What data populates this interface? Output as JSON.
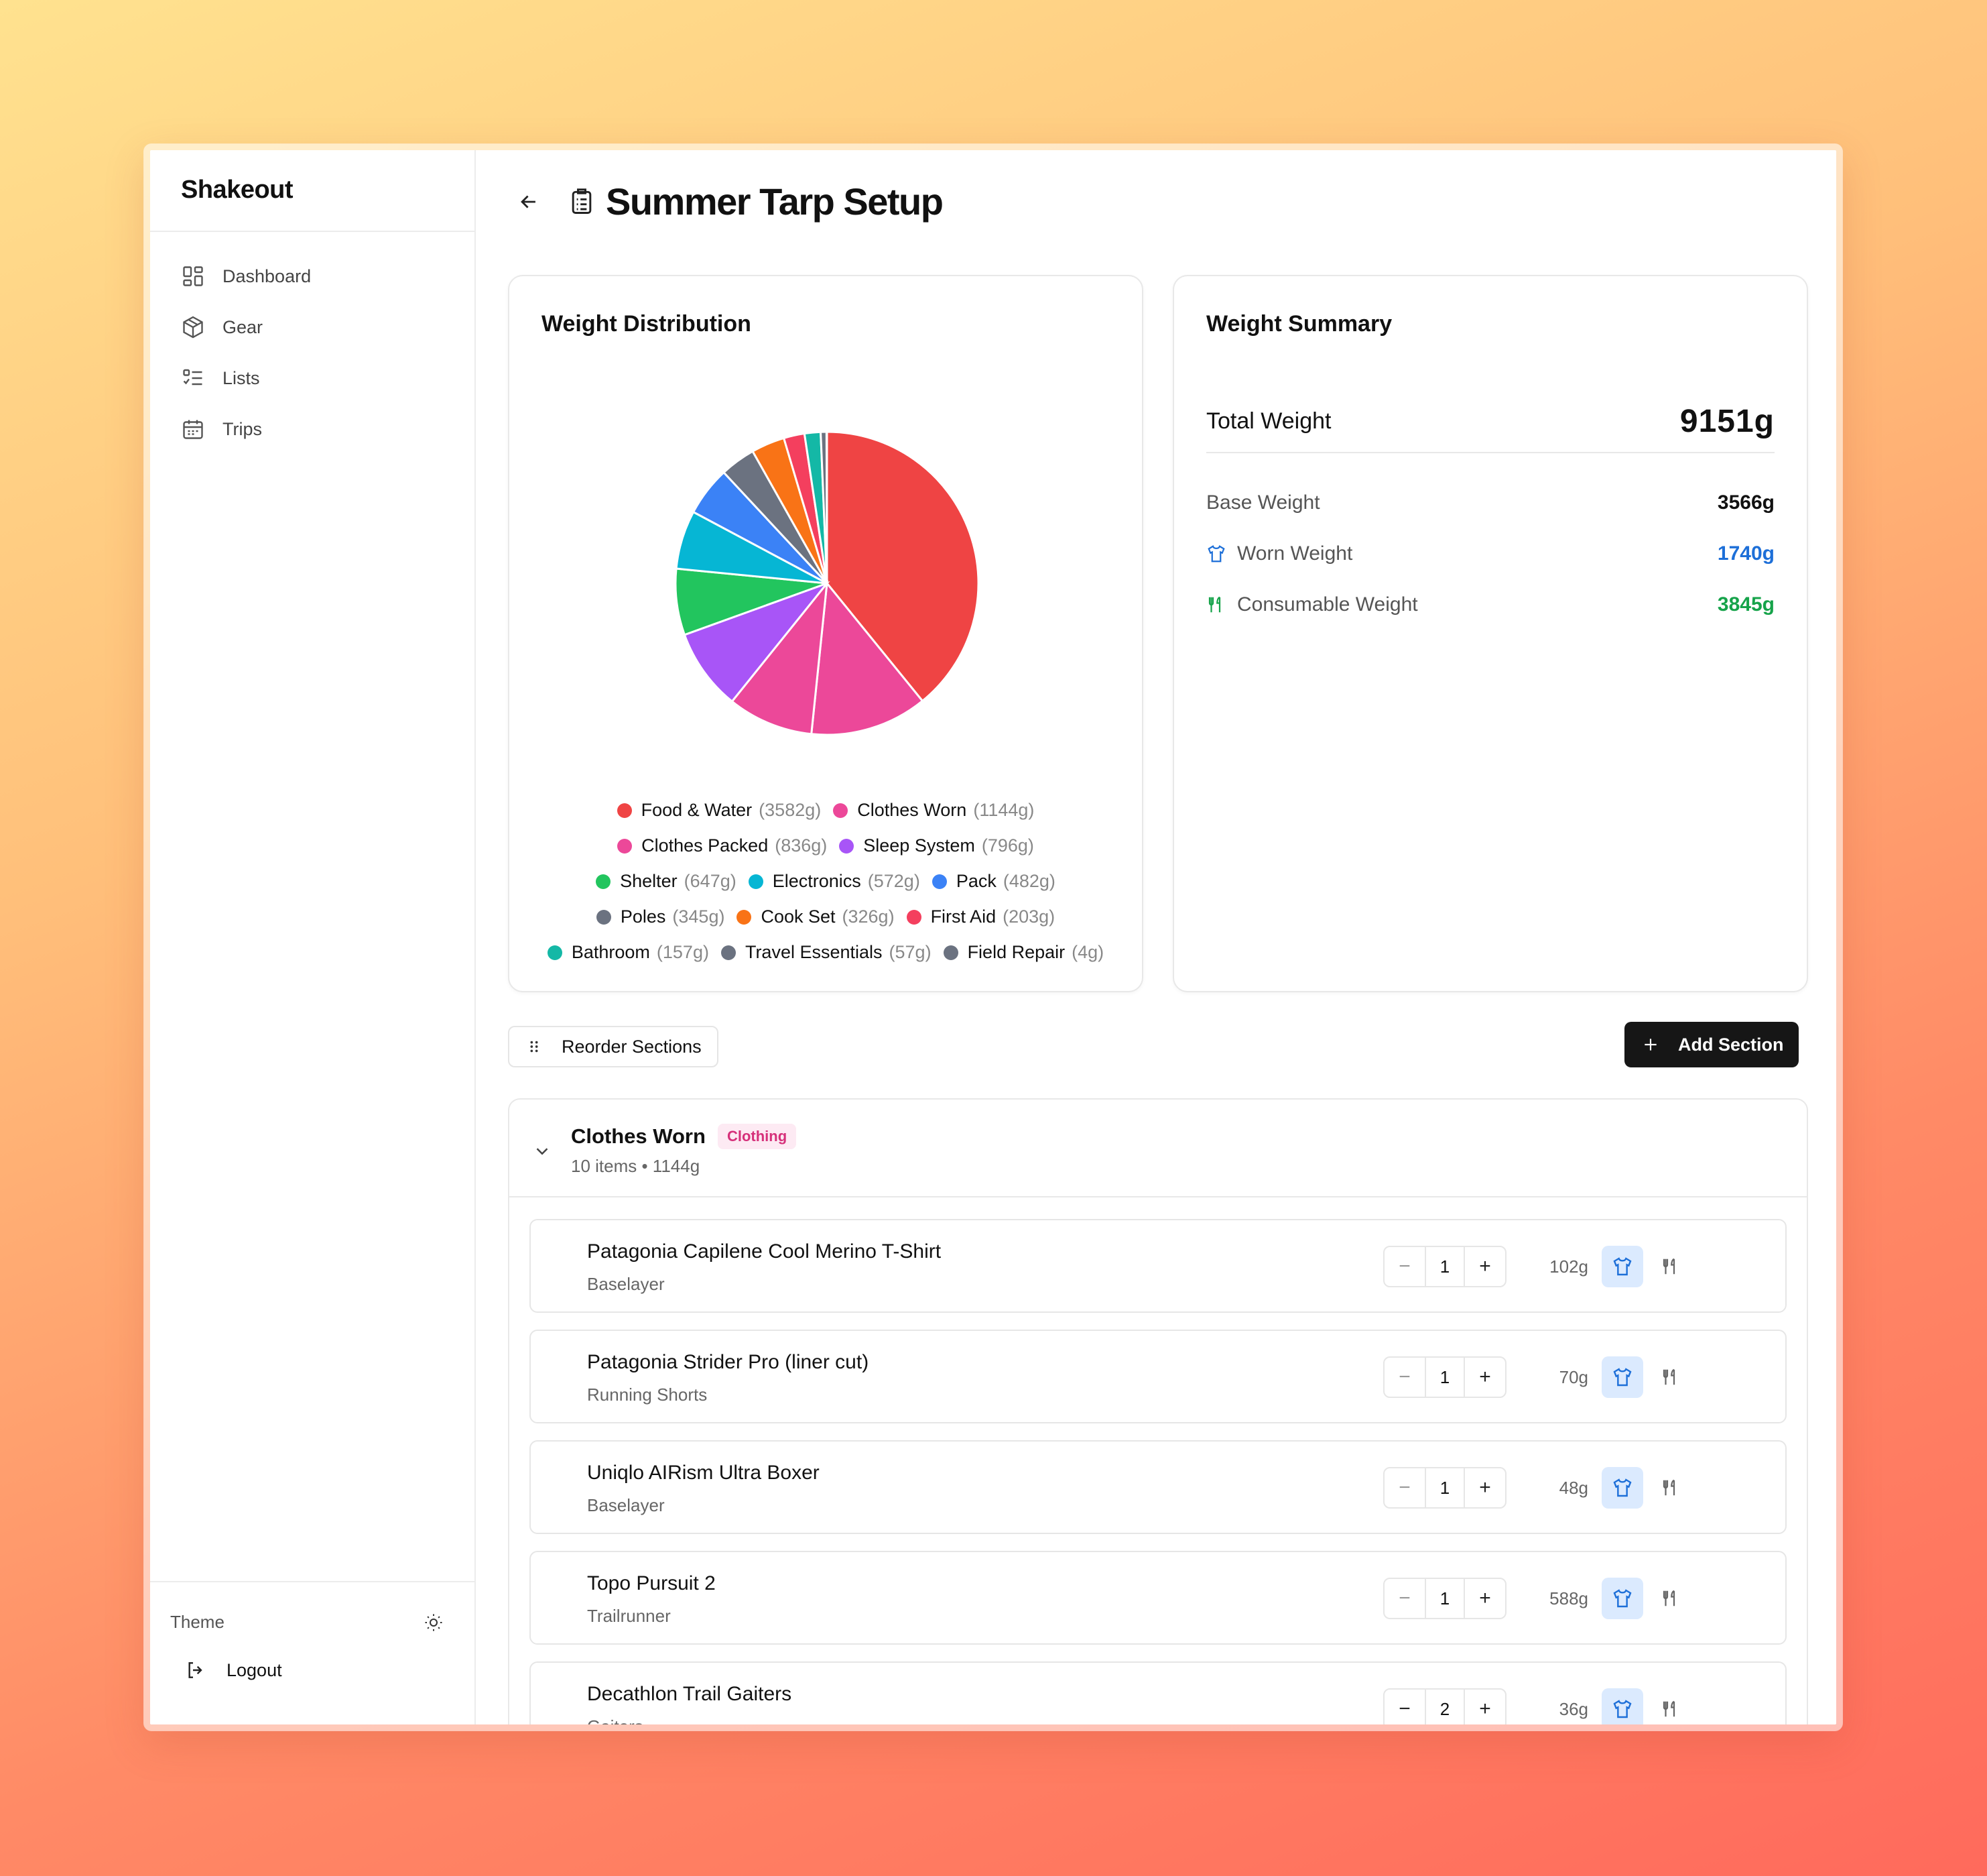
{
  "app": {
    "name": "Shakeout"
  },
  "sidebar": {
    "items": [
      {
        "label": "Dashboard",
        "icon": "dashboard-icon"
      },
      {
        "label": "Gear",
        "icon": "box-icon"
      },
      {
        "label": "Lists",
        "icon": "list-icon"
      },
      {
        "label": "Trips",
        "icon": "calendar-icon"
      }
    ],
    "theme_label": "Theme",
    "logout_label": "Logout"
  },
  "page": {
    "title": "Summer Tarp Setup"
  },
  "distribution": {
    "title": "Weight Distribution"
  },
  "chart_data": {
    "type": "pie",
    "title": "Weight Distribution",
    "categories": [
      "Food & Water",
      "Clothes Worn",
      "Clothes Packed",
      "Sleep System",
      "Shelter",
      "Electronics",
      "Pack",
      "Poles",
      "Cook Set",
      "First Aid",
      "Bathroom",
      "Travel Essentials",
      "Field Repair"
    ],
    "values": [
      3582,
      1144,
      836,
      796,
      647,
      572,
      482,
      345,
      326,
      203,
      157,
      57,
      4
    ],
    "value_labels": [
      "(3582g)",
      "(1144g)",
      "(836g)",
      "(796g)",
      "(647g)",
      "(572g)",
      "(482g)",
      "(345g)",
      "(326g)",
      "(203g)",
      "(157g)",
      "(57g)",
      "(4g)"
    ],
    "colors": [
      "#ef4444",
      "#ec4899",
      "#ec4899",
      "#a855f7",
      "#22c55e",
      "#06b6d4",
      "#3b82f6",
      "#6b7280",
      "#f97316",
      "#f43f5e",
      "#14b8a6",
      "#6b7280",
      "#6b7280"
    ],
    "legend": "bottom"
  },
  "summary": {
    "title": "Weight Summary",
    "total_label": "Total Weight",
    "total_value": "9151g",
    "base_label": "Base Weight",
    "base_value": "3566g",
    "worn_label": "Worn Weight",
    "worn_value": "1740g",
    "consumable_label": "Consumable Weight",
    "consumable_value": "3845g",
    "colors": {
      "worn": "#1d6fd8",
      "consumable": "#16a34a"
    }
  },
  "toolbar": {
    "reorder_label": "Reorder Sections",
    "add_label": "Add Section"
  },
  "section": {
    "name": "Clothes Worn",
    "badge": "Clothing",
    "subtitle": "10 items • 1144g",
    "items": [
      {
        "name": "Patagonia Capilene Cool Merino T-Shirt",
        "type": "Baselayer",
        "qty": "1",
        "weight": "102g"
      },
      {
        "name": "Patagonia Strider Pro (liner cut)",
        "type": "Running Shorts",
        "qty": "1",
        "weight": "70g"
      },
      {
        "name": "Uniqlo AIRism Ultra Boxer",
        "type": "Baselayer",
        "qty": "1",
        "weight": "48g"
      },
      {
        "name": "Topo Pursuit 2",
        "type": "Trailrunner",
        "qty": "1",
        "weight": "588g"
      },
      {
        "name": "Decathlon Trail Gaiters",
        "type": "Gaiters",
        "qty": "2",
        "weight": "36g"
      }
    ]
  }
}
